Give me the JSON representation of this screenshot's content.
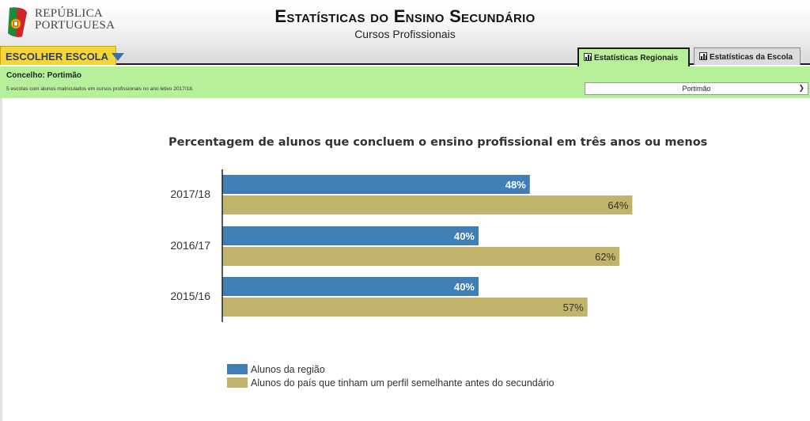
{
  "header": {
    "logo_line1": "REPÚBLICA",
    "logo_line2": "PORTUGUESA",
    "title": "Estatísticas do Ensino Secundário",
    "subtitle": "Cursos Profissionais"
  },
  "nav": {
    "choose_school": "ESCOLHER ESCOLA",
    "tabs": [
      {
        "label": "Estatísticas Regionais",
        "active": true
      },
      {
        "label": "Estatísticas da Escola",
        "active": false
      }
    ]
  },
  "region": {
    "concelho_label": "Concelho: Portimão",
    "note": "5 escolas com alunos matriculados em cursos profissionais no ano letivo 2017/18.",
    "selected": "Portimão"
  },
  "colors": {
    "region": "#3f7fb5",
    "country": "#bfb46a",
    "accent_green": "#b7f09a",
    "button_yellow": "#f6d53a"
  },
  "chart_data": {
    "type": "bar",
    "orientation": "horizontal",
    "title": "Percentagem de alunos que concluem o ensino profissional em três anos ou menos",
    "categories": [
      "2017/18",
      "2016/17",
      "2015/16"
    ],
    "series": [
      {
        "name": "Alunos da região",
        "values": [
          48,
          40,
          40
        ],
        "labels": [
          "48%",
          "40%",
          "40%"
        ],
        "color": "#3f7fb5"
      },
      {
        "name": "Alunos do país que tinham um perfil semelhante antes do secundário",
        "values": [
          64,
          62,
          57
        ],
        "labels": [
          "64%",
          "62%",
          "57%"
        ],
        "color": "#bfb46a"
      }
    ],
    "xlim": [
      0,
      100
    ],
    "legend": "bottom-left"
  }
}
